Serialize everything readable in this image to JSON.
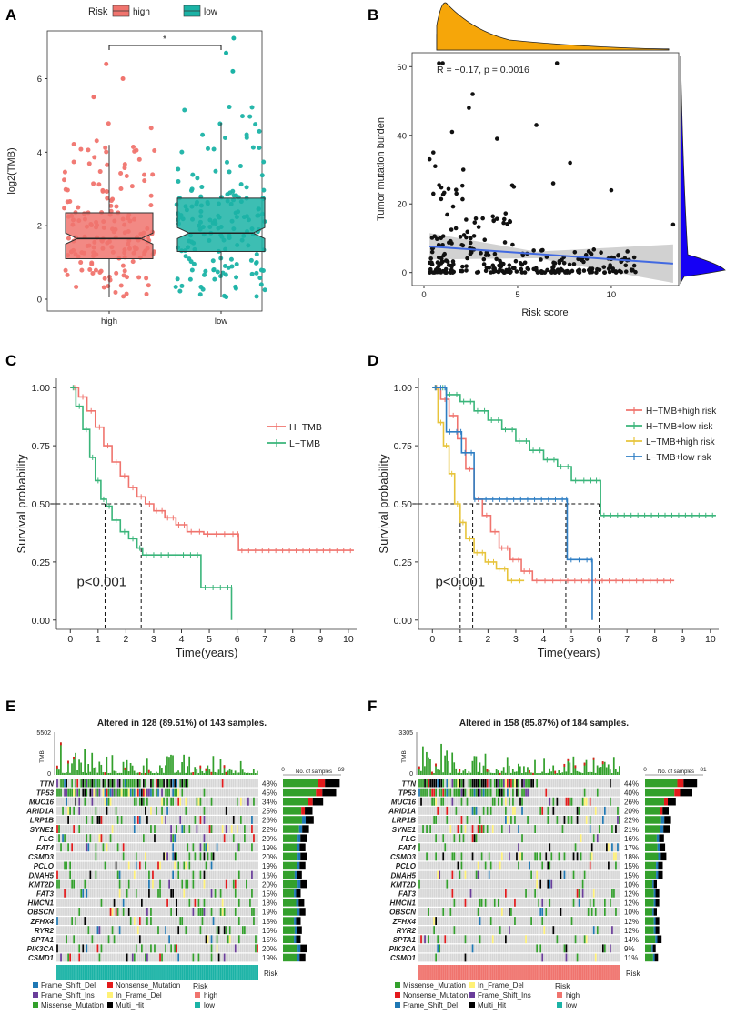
{
  "panels": {
    "A": "A",
    "B": "B",
    "C": "C",
    "D": "D",
    "E": "E",
    "F": "F"
  },
  "colors": {
    "high": "#F0746E",
    "low": "#1BB3A6",
    "orange": "#F6A609",
    "blue": "#1500F5",
    "reg_line": "#4169E1",
    "htmb_high": "#F0746E",
    "htmb_low": "#3AB57A",
    "ltmb_high": "#E7C43B",
    "ltmb_low": "#2E7EC4",
    "grey_cell": "#D6D6D6",
    "missense": "#33A02C",
    "nonsense": "#E31A1C",
    "frame_del": "#1F78B4",
    "frame_ins": "#6A3D9A",
    "inframe_del": "#FFF176",
    "inframe_ins": "#FDBF6F",
    "multi": "#000000"
  },
  "chart_data": [
    {
      "id": "A",
      "type": "boxplot",
      "legend_title": "Risk",
      "legend": [
        "high",
        "low"
      ],
      "categories": [
        "high",
        "low"
      ],
      "ylabel": "log2(TMB)",
      "ylim": [
        0,
        7.2
      ],
      "yticks": [
        "0",
        "2",
        "4",
        "6"
      ],
      "significance": "*",
      "boxes": [
        {
          "name": "high",
          "whisker_low": 0.05,
          "q1": 1.1,
          "median": 1.65,
          "q3": 2.35,
          "whisker_high": 4.2,
          "max": 6.4
        },
        {
          "name": "low",
          "whisker_low": 0.05,
          "q1": 1.3,
          "median": 1.8,
          "q3": 2.75,
          "whisker_high": 4.8,
          "max": 7.1
        }
      ]
    },
    {
      "id": "B",
      "type": "scatter",
      "xlabel": "Risk score",
      "ylabel": "Tumor mutation burden",
      "annotation": "R = −0.17, p = 0.0016",
      "xlim": [
        0,
        13.5
      ],
      "ylim": [
        -3,
        63
      ],
      "xticks": [
        "0",
        "5",
        "10"
      ],
      "yticks": [
        "0",
        "20",
        "40",
        "60"
      ],
      "regression": {
        "x0": 0.3,
        "y0": 7.6,
        "x1": 13.3,
        "y1": 2.6
      },
      "outliers": [
        [
          0.8,
          61
        ],
        [
          1.0,
          61
        ],
        [
          7.1,
          61
        ],
        [
          2.6,
          52
        ],
        [
          2.4,
          48
        ],
        [
          6.0,
          43
        ],
        [
          1.5,
          41
        ],
        [
          3.9,
          39
        ],
        [
          7.8,
          32
        ],
        [
          0.5,
          35
        ],
        [
          0.3,
          33
        ],
        [
          0.6,
          31
        ],
        [
          2.1,
          30
        ],
        [
          10.0,
          24
        ],
        [
          4.8,
          25
        ],
        [
          6.9,
          26
        ],
        [
          13.3,
          14
        ]
      ]
    },
    {
      "id": "C",
      "type": "line",
      "subtype": "kaplan-meier",
      "xlabel": "Time(years)",
      "ylabel": "Survival probability",
      "xlim": [
        -0.5,
        10.3
      ],
      "ylim": [
        -0.04,
        1.04
      ],
      "xticks": [
        "0",
        "1",
        "2",
        "3",
        "4",
        "5",
        "6",
        "7",
        "8",
        "9",
        "10"
      ],
      "yticks": [
        "0.00",
        "0.25",
        "0.50",
        "0.75",
        "1.00"
      ],
      "pvalue": "p<0.001",
      "median_lines": [
        1.25,
        2.55
      ],
      "series": [
        {
          "name": "H−TMB",
          "color_key": "htmb_high",
          "x": [
            0,
            0.3,
            0.6,
            0.9,
            1.2,
            1.5,
            1.8,
            2.1,
            2.4,
            2.7,
            3.0,
            3.4,
            3.8,
            4.2,
            4.8,
            5.4,
            6.0,
            6.05,
            10.2
          ],
          "y": [
            1.0,
            0.96,
            0.9,
            0.83,
            0.75,
            0.68,
            0.62,
            0.57,
            0.53,
            0.5,
            0.47,
            0.44,
            0.41,
            0.38,
            0.37,
            0.37,
            0.37,
            0.3,
            0.3
          ]
        },
        {
          "name": "L−TMB",
          "color_key": "htmb_low",
          "x": [
            0,
            0.2,
            0.45,
            0.7,
            0.9,
            1.1,
            1.3,
            1.5,
            1.8,
            2.1,
            2.4,
            2.6,
            4.2,
            4.7,
            5.0,
            5.8,
            5.8
          ],
          "y": [
            1.0,
            0.92,
            0.82,
            0.7,
            0.6,
            0.52,
            0.49,
            0.43,
            0.38,
            0.35,
            0.31,
            0.28,
            0.28,
            0.14,
            0.14,
            0.14,
            0.0
          ]
        }
      ]
    },
    {
      "id": "D",
      "type": "line",
      "subtype": "kaplan-meier",
      "xlabel": "Time(years)",
      "ylabel": "Survival probability",
      "xlim": [
        -0.5,
        10.3
      ],
      "ylim": [
        -0.04,
        1.04
      ],
      "xticks": [
        "0",
        "1",
        "2",
        "3",
        "4",
        "5",
        "6",
        "7",
        "8",
        "9",
        "10"
      ],
      "yticks": [
        "0.00",
        "0.25",
        "0.50",
        "0.75",
        "1.00"
      ],
      "pvalue": "p<0.001",
      "median_lines": [
        1.0,
        1.45,
        4.8,
        6.0
      ],
      "series": [
        {
          "name": "H−TMB+high risk",
          "color_key": "htmb_high",
          "x": [
            0,
            0.3,
            0.6,
            0.9,
            1.2,
            1.5,
            1.8,
            2.1,
            2.4,
            2.8,
            3.2,
            3.6,
            4.2,
            5.0,
            8.7
          ],
          "y": [
            1.0,
            0.95,
            0.88,
            0.78,
            0.65,
            0.52,
            0.45,
            0.38,
            0.31,
            0.26,
            0.21,
            0.17,
            0.17,
            0.17,
            0.17
          ]
        },
        {
          "name": "H−TMB+low risk",
          "color_key": "htmb_low",
          "x": [
            0,
            0.5,
            1.0,
            1.5,
            2.0,
            2.5,
            3.0,
            3.5,
            4.0,
            4.5,
            5.0,
            5.6,
            6.0,
            6.05,
            10.2
          ],
          "y": [
            1.0,
            0.97,
            0.94,
            0.9,
            0.86,
            0.82,
            0.77,
            0.73,
            0.69,
            0.66,
            0.6,
            0.6,
            0.6,
            0.45,
            0.45
          ]
        },
        {
          "name": "L−TMB+high risk",
          "color_key": "ltmb_high",
          "x": [
            0,
            0.2,
            0.4,
            0.6,
            0.8,
            1.0,
            1.2,
            1.5,
            1.9,
            2.3,
            2.7,
            3.3
          ],
          "y": [
            1.0,
            0.85,
            0.75,
            0.63,
            0.5,
            0.42,
            0.35,
            0.29,
            0.25,
            0.22,
            0.17,
            0.17
          ]
        },
        {
          "name": "L−TMB+low risk",
          "color_key": "ltmb_low",
          "x": [
            0,
            0.4,
            0.5,
            1.0,
            1.05,
            1.3,
            1.5,
            1.55,
            4.8,
            4.85,
            5.7,
            5.75
          ],
          "y": [
            1.0,
            1.0,
            0.81,
            0.81,
            0.72,
            0.72,
            0.52,
            0.52,
            0.52,
            0.26,
            0.26,
            0.0
          ]
        }
      ]
    },
    {
      "id": "E",
      "type": "heatmap",
      "subtype": "oncoplot",
      "title": "Altered in 128 (89.51%) of 143 samples.",
      "tmb_label": "TMB",
      "tmb_max": "5502",
      "tmb_min": "0",
      "side_axis_label": "No. of samples",
      "side_axis_min": "0",
      "side_axis_max": "69",
      "risk_label": "Risk",
      "risk_group": "low",
      "genes": [
        "TTN",
        "TP53",
        "MUC16",
        "ARID1A",
        "LRP1B",
        "SYNE1",
        "FLG",
        "FAT4",
        "CSMD3",
        "PCLO",
        "DNAH5",
        "KMT2D",
        "FAT3",
        "HMCN1",
        "OBSCN",
        "ZFHX4",
        "RYR2",
        "SPTA1",
        "PIK3CA",
        "CSMD1"
      ],
      "percents": [
        "48%",
        "45%",
        "34%",
        "25%",
        "26%",
        "22%",
        "20%",
        "19%",
        "20%",
        "19%",
        "16%",
        "20%",
        "15%",
        "18%",
        "19%",
        "15%",
        "16%",
        "15%",
        "20%",
        "19%"
      ],
      "legend_items": [
        {
          "label": "Frame_Shift_Del",
          "color_key": "frame_del"
        },
        {
          "label": "Frame_Shift_Ins",
          "color_key": "frame_ins"
        },
        {
          "label": "Missense_Mutation",
          "color_key": "missense"
        },
        {
          "label": "Nonsense_Mutation",
          "color_key": "nonsense"
        },
        {
          "label": "In_Frame_Del",
          "color_key": "inframe_del"
        },
        {
          "label": "Multi_Hit",
          "color_key": "multi"
        }
      ],
      "risk_legend_title": "Risk",
      "risk_legend": [
        "high",
        "low"
      ]
    },
    {
      "id": "F",
      "type": "heatmap",
      "subtype": "oncoplot",
      "title": "Altered in 158 (85.87%) of 184 samples.",
      "tmb_label": "TMB",
      "tmb_max": "3305",
      "tmb_min": "0",
      "side_axis_label": "No. of samples",
      "side_axis_min": "0",
      "side_axis_max": "81",
      "risk_label": "Risk",
      "risk_group": "high",
      "genes": [
        "TTN",
        "TP53",
        "MUC16",
        "ARID1A",
        "LRP1B",
        "SYNE1",
        "FLG",
        "FAT4",
        "CSMD3",
        "PCLO",
        "DNAH5",
        "KMT2D",
        "FAT3",
        "HMCN1",
        "OBSCN",
        "ZFHX4",
        "RYR2",
        "SPTA1",
        "PIK3CA",
        "CSMD1"
      ],
      "percents": [
        "44%",
        "40%",
        "26%",
        "20%",
        "22%",
        "21%",
        "16%",
        "17%",
        "18%",
        "15%",
        "15%",
        "10%",
        "12%",
        "12%",
        "10%",
        "12%",
        "12%",
        "14%",
        "9%",
        "11%"
      ],
      "legend_items": [
        {
          "label": "Missense_Mutation",
          "color_key": "missense"
        },
        {
          "label": "Nonsense_Mutation",
          "color_key": "nonsense"
        },
        {
          "label": "Frame_Shift_Del",
          "color_key": "frame_del"
        },
        {
          "label": "In_Frame_Del",
          "color_key": "inframe_del"
        },
        {
          "label": "Frame_Shift_Ins",
          "color_key": "frame_ins"
        },
        {
          "label": "Multi_Hit",
          "color_key": "multi"
        }
      ],
      "risk_legend_title": "Risk",
      "risk_legend": [
        "high",
        "low"
      ]
    }
  ]
}
